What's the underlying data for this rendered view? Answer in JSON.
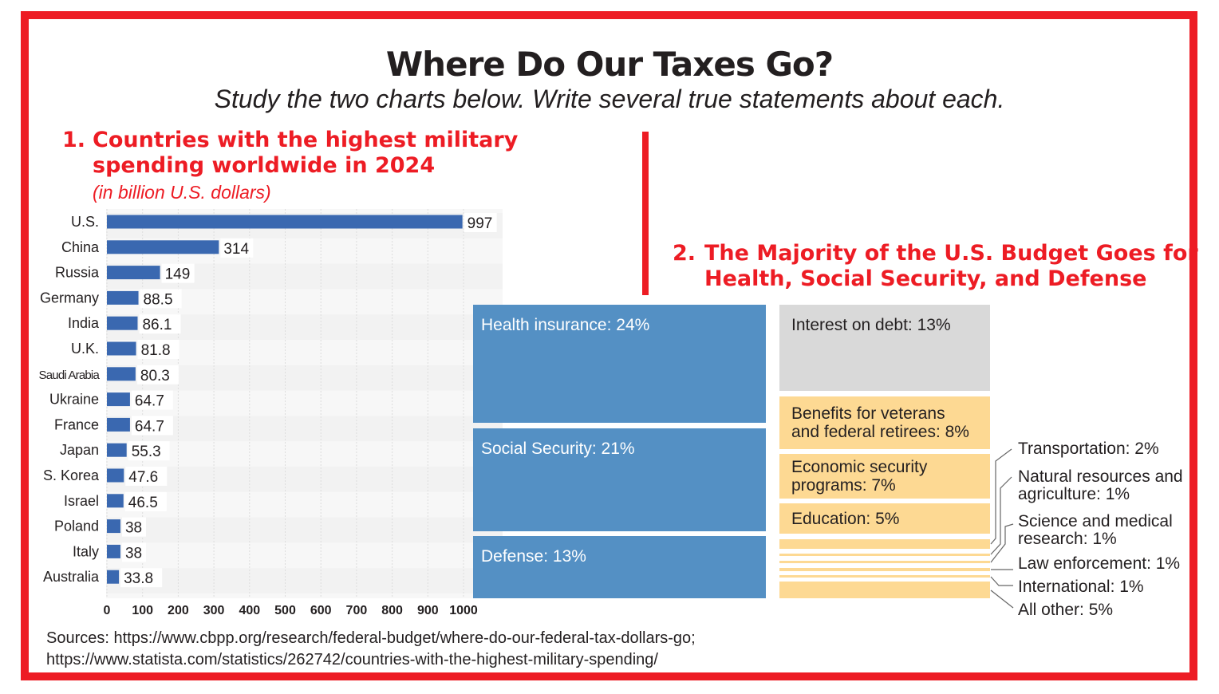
{
  "title": "Where Do Our Taxes Go?",
  "subtitle": "Study the two charts below. Write several true statements about each.",
  "sources": [
    "Sources: https://www.cbpp.org/research/federal-budget/where-do-our-federal-tax-dollars-go;",
    "https://www.statista.com/statistics/262742/countries-with-the-highest-military-spending/"
  ],
  "colors": {
    "frame": "#ed1c24",
    "bar": "#3a68b0",
    "treemap_major": "#5490c4",
    "treemap_interest": "#d9d9d9",
    "treemap_other": "#fdd993"
  },
  "chart_data": [
    {
      "type": "bar",
      "orientation": "horizontal",
      "number": "1.",
      "title": "Countries with the highest military spending worldwide in 2024",
      "title_line1": "Countries with the highest military",
      "title_line2": "spending worldwide in 2024",
      "subtitle": "(in billion U.S. dollars)",
      "categories": [
        "U.S.",
        "China",
        "Russia",
        "Germany",
        "India",
        "U.K.",
        "Saudi Arabia",
        "Ukraine",
        "France",
        "Japan",
        "S. Korea",
        "Israel",
        "Poland",
        "Italy",
        "Australia"
      ],
      "values": [
        997,
        314,
        149,
        88.5,
        86.1,
        81.8,
        80.3,
        64.7,
        64.7,
        55.3,
        47.6,
        46.5,
        38,
        38,
        33.8
      ],
      "data_labels": [
        "997",
        "314",
        "149",
        "88.5",
        "86.1",
        "81.8",
        "80.3",
        "64.7",
        "64.7",
        "55.3",
        "47.6",
        "46.5",
        "38",
        "38",
        "33.8"
      ],
      "xlim": [
        0,
        1000
      ],
      "xticks": [
        "0",
        "100",
        "200",
        "300",
        "400",
        "500",
        "600",
        "700",
        "800",
        "900",
        "1000"
      ],
      "grid": true
    },
    {
      "type": "treemap",
      "number": "2.",
      "title_line1": "The Majority of the U.S. Budget Goes for",
      "title_line2": "Health, Social Security, and Defense",
      "items": [
        {
          "label": "Health insurance: 24%",
          "value": 24
        },
        {
          "label": "Social Security: 21%",
          "value": 21
        },
        {
          "label": "Defense: 13%",
          "value": 13
        },
        {
          "label": "Interest on debt: 13%",
          "value": 13
        },
        {
          "label_line1": "Benefits for veterans",
          "label_line2": "and federal retirees: 8%",
          "value": 8
        },
        {
          "label_line1": "Economic security",
          "label_line2": "programs: 7%",
          "value": 7
        },
        {
          "label": "Education: 5%",
          "value": 5
        },
        {
          "label": "Transportation: 2%",
          "value": 2
        },
        {
          "label_line1": "Natural resources and",
          "label_line2": "agriculture: 1%",
          "value": 1
        },
        {
          "label_line1": "Science and medical",
          "label_line2": "research: 1%",
          "value": 1
        },
        {
          "label": "Law enforcement: 1%",
          "value": 1
        },
        {
          "label": "International: 1%",
          "value": 1
        },
        {
          "label": "All other: 5%",
          "value": 5
        }
      ]
    }
  ]
}
